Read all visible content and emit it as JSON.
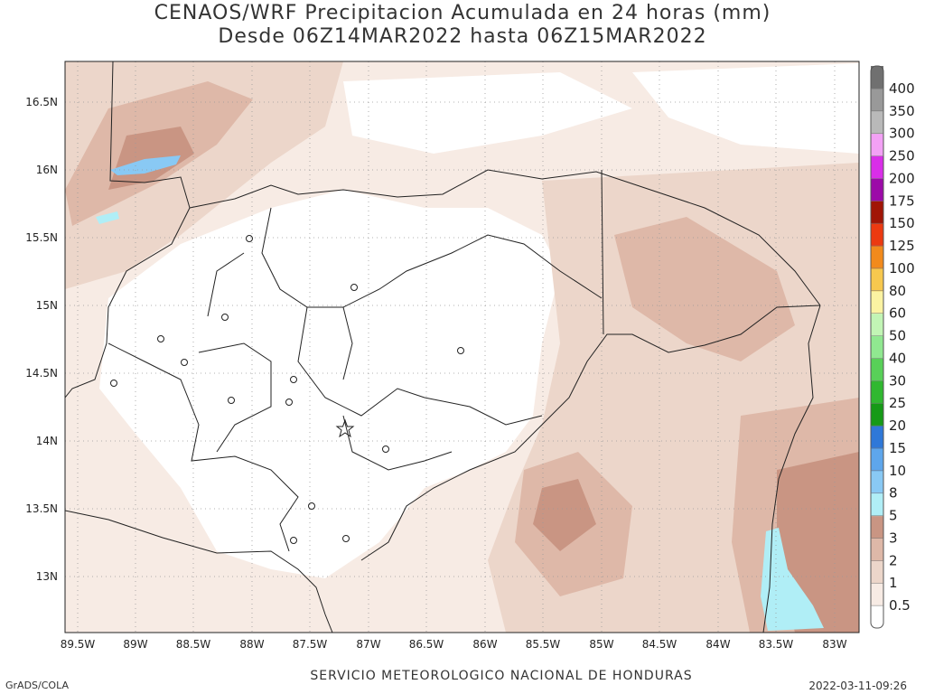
{
  "header": {
    "title_line1": "CENAOS/WRF Precipitacion Acumulada en 24 horas (mm)",
    "title_line2": "Desde 06Z14MAR2022 hasta 06Z15MAR2022"
  },
  "map": {
    "lat_labels": [
      "16.5N",
      "16N",
      "15.5N",
      "15N",
      "14.5N",
      "14N",
      "13.5N",
      "13N"
    ],
    "lon_labels": [
      "89.5W",
      "89W",
      "88.5W",
      "88W",
      "87.5W",
      "87W",
      "86.5W",
      "86W",
      "85.5W",
      "85W",
      "84.5W",
      "84W",
      "83.5W",
      "83W"
    ]
  },
  "colorbar": {
    "levels": [
      "0.5",
      "1",
      "2",
      "3",
      "5",
      "8",
      "10",
      "15",
      "20",
      "25",
      "30",
      "40",
      "50",
      "60",
      "80",
      "100",
      "125",
      "150",
      "175",
      "200",
      "250",
      "300",
      "350",
      "400"
    ],
    "colors": [
      "#ffffff",
      "#f7ebe4",
      "#ecd6ca",
      "#deb8a8",
      "#c99583",
      "#b0eef6",
      "#89c9f4",
      "#5ea6ec",
      "#2f78d8",
      "#169a17",
      "#30b830",
      "#58d058",
      "#90e890",
      "#c2f5b5",
      "#fbf3a2",
      "#f7c84e",
      "#f28a1c",
      "#ec3a11",
      "#a11506",
      "#9c0aa8",
      "#d92ee8",
      "#f3a1f5",
      "#b9b9b9",
      "#999999",
      "#707070"
    ]
  },
  "footer": {
    "left": "GrADS/COLA",
    "center": "SERVICIO METEOROLOGICO NACIONAL DE HONDURAS",
    "right": "2022-03-11-09:26"
  }
}
